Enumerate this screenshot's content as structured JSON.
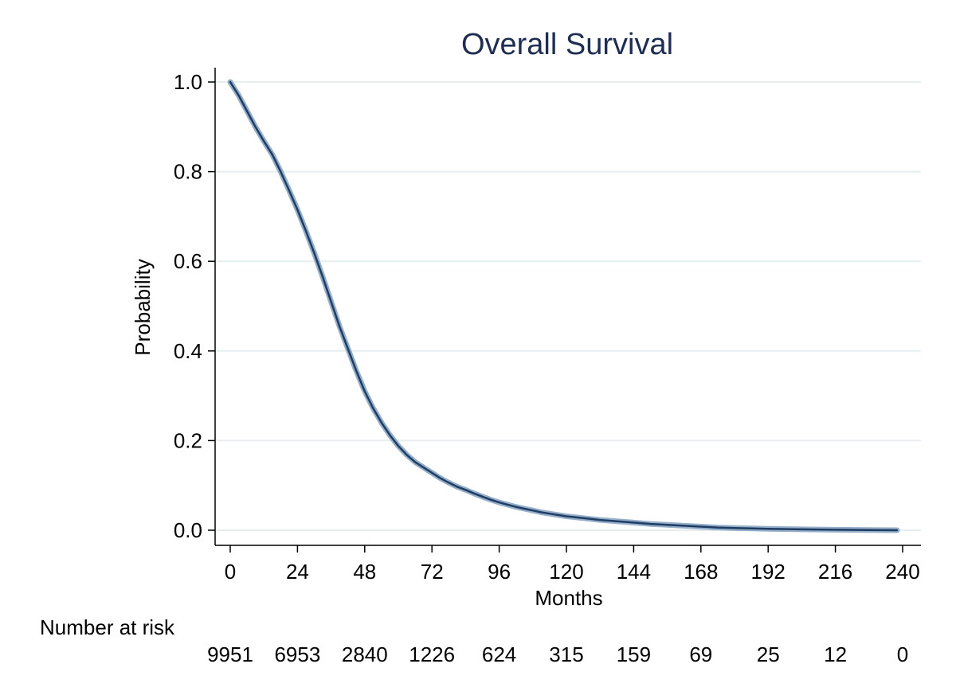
{
  "chart_data": {
    "type": "line",
    "title": "Overall Survival",
    "xlabel": "Months",
    "ylabel": "Probability",
    "xlim": [
      0,
      240
    ],
    "ylim": [
      0,
      1
    ],
    "x_ticks": [
      0,
      24,
      48,
      72,
      96,
      120,
      144,
      168,
      192,
      216,
      240
    ],
    "x_tick_labels": [
      "0",
      "24",
      "48",
      "72",
      "96",
      "120",
      "144",
      "168",
      "192",
      "216",
      "240"
    ],
    "y_ticks": [
      0,
      0.2,
      0.4,
      0.6,
      0.8,
      1.0
    ],
    "y_tick_labels": [
      "0.0",
      "0.2",
      "0.4",
      "0.6",
      "0.8",
      "1.0"
    ],
    "grid": "horizontal",
    "series": [
      {
        "color": "#1f3d63",
        "ci_color": "#8aa6c4",
        "x": [
          0,
          3,
          6,
          9,
          12,
          15,
          18,
          21,
          24,
          27,
          30,
          33,
          36,
          39,
          42,
          45,
          48,
          51,
          54,
          57,
          60,
          63,
          66,
          69,
          72,
          75,
          78,
          81,
          84,
          87,
          90,
          93,
          96,
          99,
          102,
          105,
          108,
          111,
          114,
          117,
          120,
          126,
          132,
          138,
          144,
          150,
          156,
          162,
          168,
          174,
          180,
          192,
          204,
          216,
          228,
          238
        ],
        "y": [
          1.0,
          0.97,
          0.935,
          0.9,
          0.868,
          0.838,
          0.8,
          0.758,
          0.715,
          0.668,
          0.618,
          0.565,
          0.51,
          0.455,
          0.405,
          0.355,
          0.31,
          0.272,
          0.24,
          0.212,
          0.188,
          0.168,
          0.152,
          0.14,
          0.128,
          0.116,
          0.106,
          0.097,
          0.09,
          0.082,
          0.075,
          0.068,
          0.062,
          0.057,
          0.052,
          0.048,
          0.044,
          0.04,
          0.037,
          0.034,
          0.031,
          0.027,
          0.023,
          0.02,
          0.017,
          0.014,
          0.012,
          0.01,
          0.008,
          0.006,
          0.005,
          0.003,
          0.002,
          0.001,
          0.0005,
          0.0
        ]
      }
    ],
    "risk_table": {
      "label": "Number at risk",
      "x": [
        0,
        24,
        48,
        72,
        96,
        120,
        144,
        168,
        192,
        216,
        240
      ],
      "values": [
        "9951",
        "6953",
        "2840",
        "1226",
        "624",
        "315",
        "159",
        "69",
        "25",
        "12",
        "0"
      ]
    }
  }
}
